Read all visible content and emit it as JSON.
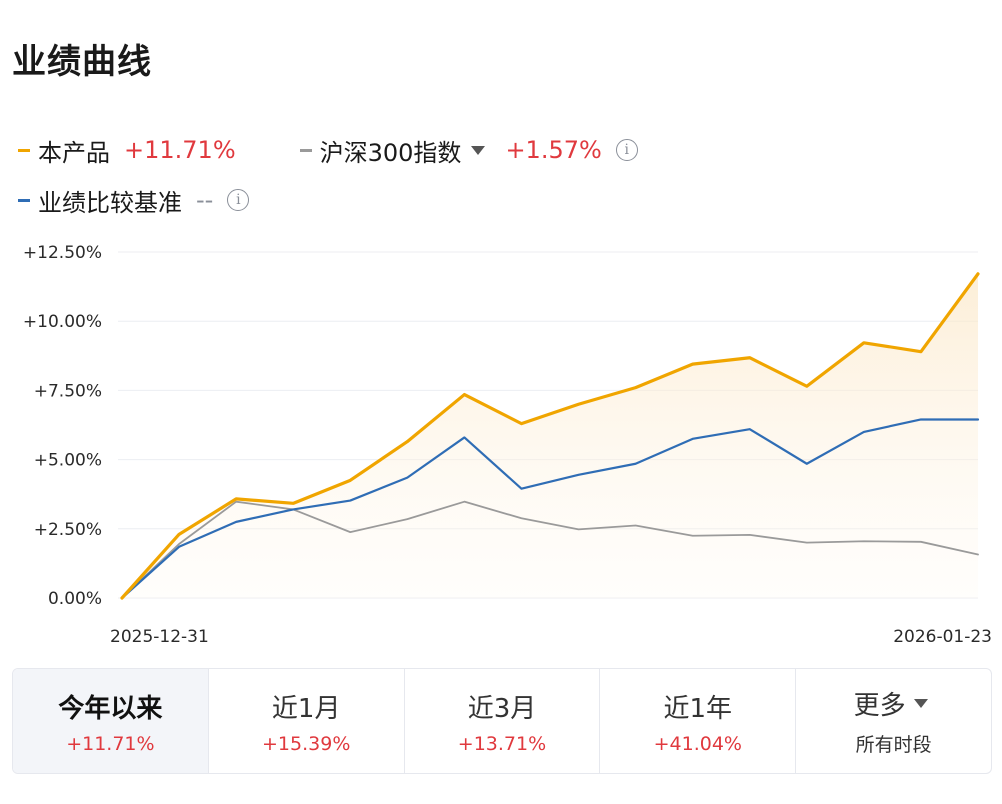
{
  "title": "业绩曲线",
  "legend": {
    "product": {
      "label": "本产品",
      "value": "+11.71%",
      "color": "#f0a500"
    },
    "index": {
      "label": "沪深300指数",
      "value": "+1.57%",
      "color": "#9a9a9a",
      "dropdown_icon": "caret-down-icon",
      "info_icon": "info-icon"
    },
    "benchmark": {
      "label": "业绩比较基准",
      "value": "--",
      "color": "#2f6db5",
      "info_icon": "info-icon"
    }
  },
  "chart_data": {
    "type": "line",
    "y_ticks": [
      "+12.50%",
      "+10.00%",
      "+7.50%",
      "+5.00%",
      "+2.50%",
      "0.00%"
    ],
    "x_labels": [
      "2025-12-31",
      "2026-01-23"
    ],
    "ylim": [
      0,
      12.5
    ],
    "grid": true,
    "series": [
      {
        "name": "本产品",
        "color": "#f0a500",
        "values": [
          0,
          2.3,
          3.58,
          3.42,
          4.25,
          5.65,
          7.35,
          6.3,
          7.0,
          7.6,
          8.45,
          8.68,
          7.65,
          9.22,
          8.9,
          11.71
        ]
      },
      {
        "name": "沪深300指数",
        "color": "#9a9a9a",
        "values": [
          0,
          1.95,
          3.48,
          3.2,
          2.38,
          2.85,
          3.48,
          2.88,
          2.48,
          2.62,
          2.25,
          2.28,
          2.0,
          2.05,
          2.03,
          1.57
        ]
      },
      {
        "name": "业绩比较基准",
        "color": "#2f6db5",
        "values": [
          0,
          1.85,
          2.75,
          3.2,
          3.52,
          4.35,
          5.8,
          3.95,
          4.45,
          4.85,
          5.75,
          6.1,
          4.85,
          6.0,
          6.45,
          6.45
        ]
      }
    ]
  },
  "tabs": [
    {
      "label": "今年以来",
      "sub": "+11.71%",
      "active": true
    },
    {
      "label": "近1月",
      "sub": "+15.39%"
    },
    {
      "label": "近3月",
      "sub": "+13.71%"
    },
    {
      "label": "近1年",
      "sub": "+41.04%"
    },
    {
      "label": "更多",
      "sub": "所有时段",
      "icon": "caret-down-icon"
    }
  ]
}
